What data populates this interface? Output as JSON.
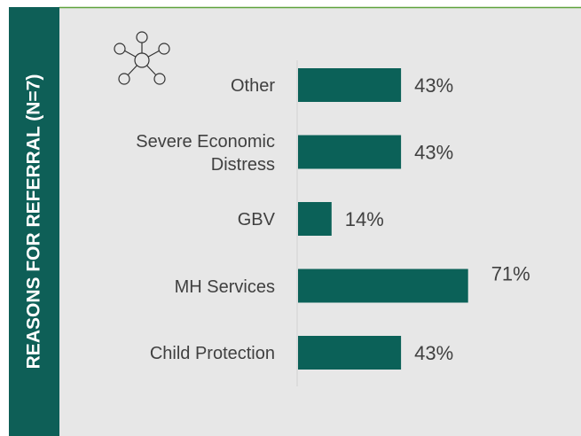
{
  "chart_data": {
    "type": "bar",
    "orientation": "horizontal",
    "title": "REASONS FOR REFERRAL (N=7)",
    "categories": [
      "Other",
      "Severe Economic Distress",
      "GBV",
      "MH Services",
      "Child Protection"
    ],
    "values": [
      43,
      43,
      14,
      71,
      43
    ],
    "value_labels": [
      "43%",
      "43%",
      "14%",
      "71%",
      "43%"
    ],
    "color": "#0b6158"
  }
}
